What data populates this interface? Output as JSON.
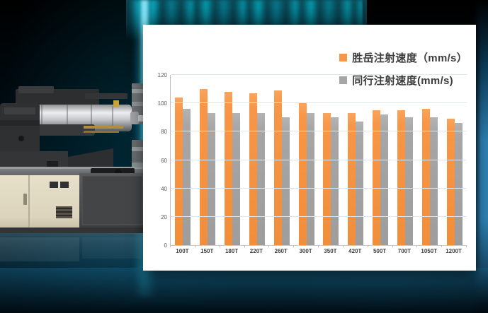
{
  "legend": [
    {
      "label": "胜岳注射速度（mm/s）",
      "color": "#F79646"
    },
    {
      "label": "同行注射速度(mm/s)",
      "color": "#A6A6A6"
    }
  ],
  "chart_data": {
    "type": "bar",
    "categories": [
      "100T",
      "150T",
      "180T",
      "220T",
      "260T",
      "300T",
      "350T",
      "420T",
      "500T",
      "700T",
      "1050T",
      "1200T"
    ],
    "series": [
      {
        "name": "胜岳注射速度（mm/s）",
        "color": "#F79646",
        "values": [
          104,
          110,
          108,
          107,
          109,
          100,
          93,
          93,
          95,
          95,
          96,
          89
        ]
      },
      {
        "name": "同行注射速度(mm/s)",
        "color": "#A6A6A6",
        "values": [
          96,
          93,
          93,
          93,
          90,
          93,
          90,
          87,
          92,
          90,
          90,
          86
        ]
      }
    ],
    "title": "",
    "xlabel": "",
    "ylabel": "",
    "ylim": [
      0,
      120
    ],
    "yticks": [
      0,
      20,
      40,
      60,
      80,
      100,
      120
    ],
    "grid": true,
    "legend_position": "top-right"
  },
  "colors": {
    "accent_orange": "#F79646",
    "series_gray": "#A6A6A6",
    "panel_white": "#ffffff",
    "gridline_blue": "#dde7f2",
    "background_teal": "#0d4653",
    "glow_cyan": "#2ac8eb",
    "edge_blue": "#2e80b2"
  }
}
